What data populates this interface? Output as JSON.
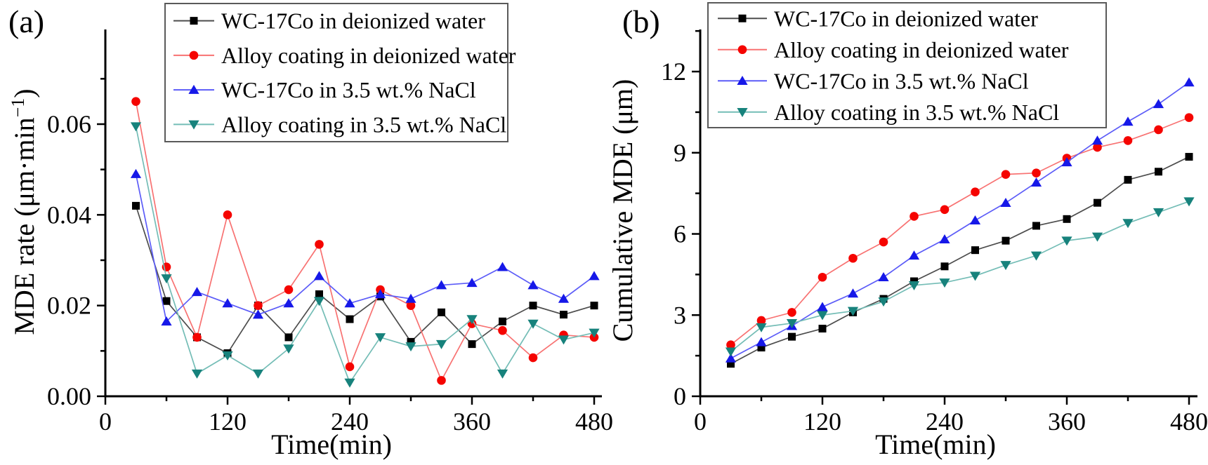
{
  "figure": {
    "background": "#ffffff",
    "axis_color": "#000000",
    "legend_border_color": "#5a5a5a"
  },
  "chart_data": [
    {
      "id": "a",
      "type": "line",
      "panel_label": "(a)",
      "xlabel": "Time(min)",
      "ylabel": "MDE rate (μm·min⁻¹)",
      "ylabel_parts": {
        "main": "MDE rate (μm·min",
        "sup": "−1",
        "end": ")"
      },
      "x": [
        30,
        60,
        90,
        120,
        150,
        180,
        210,
        240,
        270,
        300,
        330,
        360,
        390,
        420,
        450,
        480
      ],
      "xlim": [
        0,
        487
      ],
      "ylim": [
        0,
        0.0808
      ],
      "x_major_ticks": [
        0,
        120,
        240,
        360,
        480
      ],
      "x_major_labels": [
        "0",
        "120",
        "240",
        "360",
        "480"
      ],
      "x_minor_ticks": [
        60,
        180,
        300,
        420
      ],
      "y_major_ticks": [
        0.0,
        0.02,
        0.04,
        0.06
      ],
      "y_major_labels": [
        "0.00",
        "0.02",
        "0.04",
        "0.06"
      ],
      "y_minor_ticks": [
        0.01,
        0.03,
        0.05,
        0.07
      ],
      "grid": false,
      "legend_position": "top-inside",
      "series": [
        {
          "key": "wc17co-di",
          "name": "WC-17Co  in deionized water",
          "marker": "square",
          "marker_color": "#000000",
          "line_color": "#4d4d4d",
          "values": [
            0.042,
            0.021,
            0.013,
            0.0095,
            0.02,
            0.013,
            0.0225,
            0.017,
            0.022,
            0.012,
            0.0185,
            0.0115,
            0.0165,
            0.02,
            0.018,
            0.02
          ]
        },
        {
          "key": "alloy-di",
          "name": "Alloy coating in deionized water",
          "marker": "circle",
          "marker_color": "#f50400",
          "line_color": "#f87272",
          "values": [
            0.065,
            0.0285,
            0.013,
            0.04,
            0.02,
            0.0235,
            0.0335,
            0.0065,
            0.0235,
            0.02,
            0.0035,
            0.016,
            0.0145,
            0.0085,
            0.0135,
            0.013
          ]
        },
        {
          "key": "wc17co-nacl",
          "name": "WC-17Co in 3.5 wt.% NaCl",
          "marker": "triangle-up",
          "marker_color": "#1618e8",
          "line_color": "#5c5cf8",
          "values": [
            0.049,
            0.0165,
            0.023,
            0.0205,
            0.018,
            0.0205,
            0.0265,
            0.0205,
            0.0225,
            0.0215,
            0.0245,
            0.025,
            0.0285,
            0.0245,
            0.0215,
            0.0265
          ]
        },
        {
          "key": "alloy-nacl",
          "name": "Alloy coating in 3.5 wt.% NaCl",
          "marker": "triangle-down",
          "marker_color": "#17827c",
          "line_color": "#74bdb6",
          "values": [
            0.0595,
            0.026,
            0.005,
            0.009,
            0.005,
            0.0105,
            0.021,
            0.003,
            0.013,
            0.011,
            0.0115,
            0.017,
            0.005,
            0.016,
            0.0125,
            0.014
          ]
        }
      ]
    },
    {
      "id": "b",
      "type": "line",
      "panel_label": "(b)",
      "xlabel": "Time(min)",
      "ylabel": "Cumulative MDE (μm)",
      "ylabel_parts": {
        "main": "Cumulative MDE (μm)",
        "sup": "",
        "end": ""
      },
      "x": [
        30,
        60,
        90,
        120,
        150,
        180,
        210,
        240,
        270,
        300,
        330,
        360,
        390,
        420,
        450,
        480
      ],
      "xlim": [
        0,
        488
      ],
      "ylim": [
        0,
        13.55
      ],
      "x_major_ticks": [
        0,
        120,
        240,
        360,
        480
      ],
      "x_major_labels": [
        "0",
        "120",
        "240",
        "360",
        "480"
      ],
      "x_minor_ticks": [
        60,
        180,
        300,
        420
      ],
      "y_major_ticks": [
        0,
        3,
        6,
        9,
        12
      ],
      "y_major_labels": [
        "0",
        "3",
        "6",
        "9",
        "12"
      ],
      "y_minor_ticks": [
        1.5,
        4.5,
        7.5,
        10.5,
        13.5
      ],
      "grid": false,
      "legend_position": "top-inside",
      "series": [
        {
          "key": "wc17co-di",
          "name": "WC-17Co  in deionized water",
          "marker": "square",
          "marker_color": "#000000",
          "line_color": "#4d4d4d",
          "values": [
            1.2,
            1.8,
            2.2,
            2.5,
            3.1,
            3.6,
            4.25,
            4.8,
            5.4,
            5.75,
            6.3,
            6.55,
            7.15,
            8.0,
            8.3,
            8.85
          ]
        },
        {
          "key": "alloy-di",
          "name": "Alloy coating in deionized water",
          "marker": "circle",
          "marker_color": "#f50400",
          "line_color": "#f87272",
          "values": [
            1.9,
            2.8,
            3.1,
            4.4,
            5.1,
            5.7,
            6.65,
            6.9,
            7.55,
            8.2,
            8.25,
            8.8,
            9.2,
            9.45,
            9.85,
            10.3
          ]
        },
        {
          "key": "wc17co-nacl",
          "name": "WC-17Co  in 3.5 wt.% NaCl",
          "marker": "triangle-up",
          "marker_color": "#1618e8",
          "line_color": "#5c5cf8",
          "values": [
            1.4,
            2.0,
            2.6,
            3.3,
            3.8,
            4.4,
            5.2,
            5.8,
            6.5,
            7.15,
            7.9,
            8.65,
            9.45,
            10.15,
            10.8,
            11.6
          ]
        },
        {
          "key": "alloy-nacl",
          "name": "Alloy coating in 3.5 wt.% NaCl",
          "marker": "triangle-down",
          "marker_color": "#17827c",
          "line_color": "#74bdb6",
          "values": [
            1.65,
            2.55,
            2.7,
            3.0,
            3.15,
            3.5,
            4.1,
            4.2,
            4.45,
            4.85,
            5.2,
            5.75,
            5.9,
            6.4,
            6.8,
            7.2
          ]
        }
      ]
    }
  ]
}
